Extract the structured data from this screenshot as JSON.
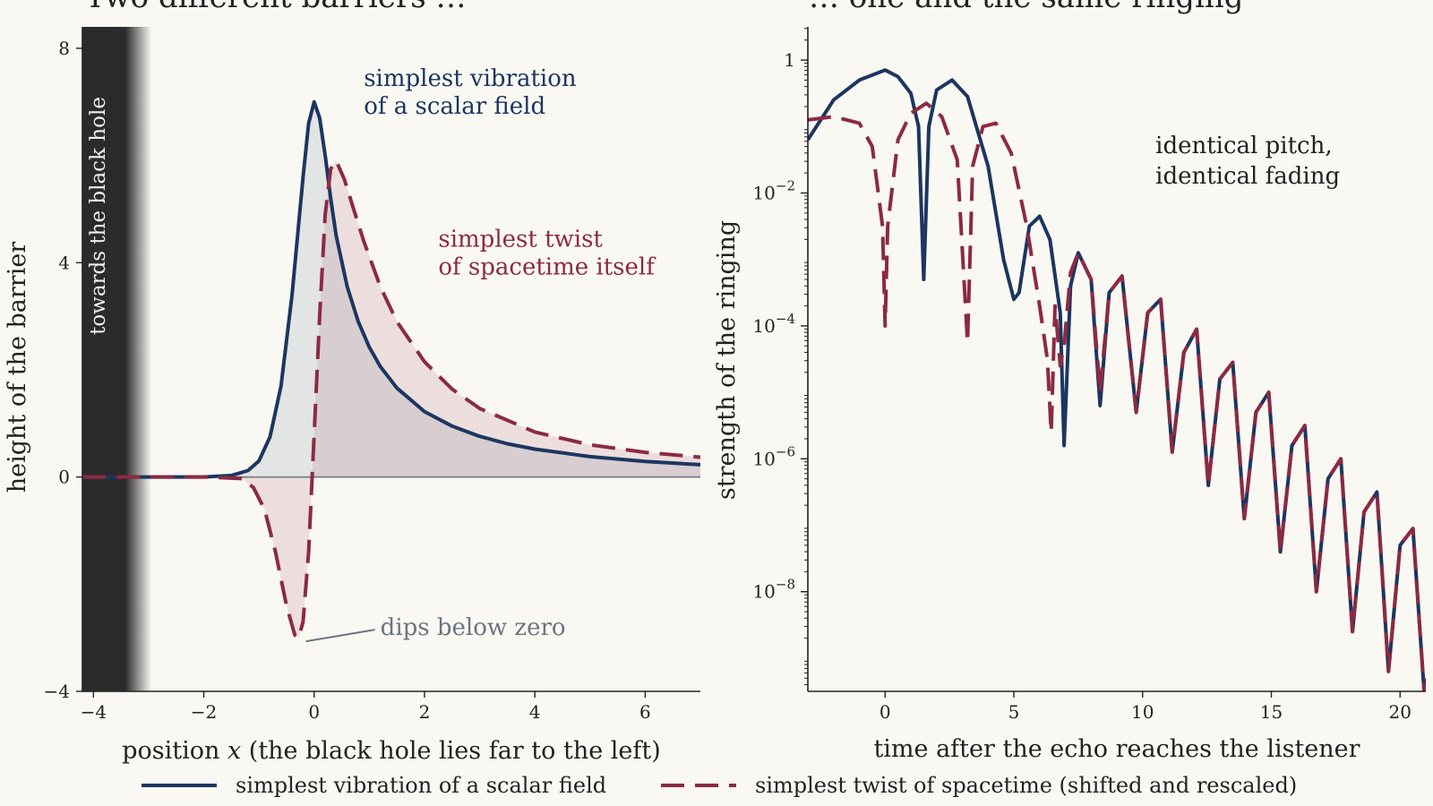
{
  "colors": {
    "background": "#faf8f3",
    "navy": "#1c3660",
    "crimson": "#8c2a43",
    "wall": "#2b2b2b",
    "grey": "#6b7480"
  },
  "chart_data": [
    {
      "type": "line",
      "title": "Two different barriers …",
      "xlabel": "position x (the black hole lies far to the left)",
      "ylabel": "height of the barrier",
      "xlim": [
        -4.2,
        7
      ],
      "ylim": [
        -4,
        8.4
      ],
      "xticks": [
        "−4",
        "−2",
        "0",
        "2",
        "4",
        "6"
      ],
      "xtick_values": [
        -4,
        -2,
        0,
        2,
        4,
        6
      ],
      "yticks": [
        "−4",
        "0",
        "4",
        "8"
      ],
      "ytick_values": [
        -4,
        0,
        4,
        8
      ],
      "wall_label": "towards the black hole",
      "wall_range": [
        -4.2,
        -2.95
      ],
      "series": [
        {
          "name": "simplest vibration of a scalar field",
          "style": "solid",
          "x": [
            -4.2,
            -2,
            -1.5,
            -1.2,
            -1.0,
            -0.8,
            -0.6,
            -0.4,
            -0.2,
            -0.1,
            0,
            0.1,
            0.2,
            0.3,
            0.4,
            0.6,
            0.8,
            1.0,
            1.2,
            1.5,
            2.0,
            2.5,
            3.0,
            3.5,
            4.0,
            5.0,
            6.0,
            7.0
          ],
          "values": [
            0,
            0,
            0.03,
            0.12,
            0.3,
            0.75,
            1.7,
            3.4,
            5.6,
            6.6,
            7.0,
            6.7,
            6.0,
            5.2,
            4.5,
            3.55,
            2.9,
            2.42,
            2.06,
            1.66,
            1.22,
            0.95,
            0.76,
            0.62,
            0.52,
            0.38,
            0.29,
            0.23
          ]
        },
        {
          "name": "simplest twist of spacetime (shifted and rescaled)",
          "style": "dashed",
          "x": [
            -4.2,
            -2,
            -1.3,
            -1.1,
            -0.9,
            -0.7,
            -0.5,
            -0.35,
            -0.28,
            -0.2,
            -0.1,
            0,
            0.1,
            0.2,
            0.3,
            0.4,
            0.55,
            0.7,
            0.9,
            1.2,
            1.5,
            2.0,
            2.5,
            3.0,
            4.0,
            5.0,
            6.0,
            7.0
          ],
          "values": [
            0,
            0,
            -0.03,
            -0.2,
            -0.6,
            -1.4,
            -2.4,
            -2.95,
            -3.0,
            -2.7,
            -1.4,
            0.8,
            3.0,
            4.9,
            5.75,
            5.9,
            5.55,
            5.05,
            4.4,
            3.55,
            2.9,
            2.15,
            1.64,
            1.28,
            0.84,
            0.6,
            0.46,
            0.37
          ]
        }
      ],
      "annotations": [
        {
          "text": [
            "simplest vibration",
            "of a scalar field"
          ],
          "x": 0.9,
          "y": 7.3,
          "color": "navy"
        },
        {
          "text": [
            "simplest twist",
            "of spacetime itself"
          ],
          "x": 2.25,
          "y": 4.3,
          "color": "crimson"
        },
        {
          "text": [
            "dips below zero"
          ],
          "x": 1.2,
          "y": -2.95,
          "color": "grey",
          "arrow_to": [
            -0.28,
            -3.0
          ]
        }
      ]
    },
    {
      "type": "line",
      "title": "… one and the same ringing",
      "xlabel": "time after the echo reaches the listener",
      "ylabel": "strength of the ringing",
      "yscale": "log",
      "xlim": [
        -3,
        21
      ],
      "ylim_log10": [
        -9.5,
        0.5
      ],
      "xticks": [
        "0",
        "5",
        "10",
        "15",
        "20"
      ],
      "xtick_values": [
        0,
        5,
        10,
        15,
        20
      ],
      "yticks_exponent": [
        "0",
        "−2",
        "−4",
        "−6",
        "−8"
      ],
      "ytick_log10": [
        0,
        -2,
        -4,
        -6,
        -8
      ],
      "annotations": [
        {
          "text": [
            "identical pitch,",
            "identical fading"
          ],
          "x": 10.5,
          "y_log10": -1.4,
          "color": "dark"
        }
      ],
      "series": [
        {
          "name": "simplest vibration of a scalar field",
          "style": "solid",
          "x": [
            -3,
            -2,
            -1,
            0,
            0.5,
            1,
            1.3,
            1.5,
            1.7,
            2,
            2.6,
            3.2,
            4,
            4.6,
            5,
            5.2,
            5.6,
            6,
            6.4,
            6.8,
            6.95,
            7.2,
            7.5,
            8,
            8.35,
            8.7,
            9.2,
            9.75,
            10.2,
            10.7,
            11.15,
            11.6,
            12.1,
            12.55,
            13,
            13.5,
            13.95,
            14.4,
            14.9,
            15.35,
            15.8,
            16.3,
            16.75,
            17.2,
            17.7,
            18.15,
            18.6,
            19.1,
            19.55,
            20,
            20.5,
            20.95,
            21
          ],
          "values": [
            -1.2,
            -0.6,
            -0.3,
            -0.15,
            -0.25,
            -0.5,
            -1.0,
            -3.3,
            -1.0,
            -0.45,
            -0.3,
            -0.55,
            -1.6,
            -3.0,
            -3.6,
            -3.5,
            -2.5,
            -2.35,
            -2.7,
            -3.8,
            -5.8,
            -3.4,
            -2.9,
            -3.3,
            -5.2,
            -3.5,
            -3.25,
            -5.3,
            -3.8,
            -3.6,
            -5.9,
            -4.4,
            -4.05,
            -6.4,
            -4.8,
            -4.55,
            -6.9,
            -5.3,
            -5.0,
            -7.4,
            -5.8,
            -5.5,
            -8.0,
            -6.3,
            -6.0,
            -8.6,
            -6.8,
            -6.5,
            -9.2,
            -7.3,
            -7.05,
            -9.6,
            -9.3
          ]
        },
        {
          "name": "simplest twist of spacetime (shifted and rescaled)",
          "style": "dashed",
          "x": [
            -3,
            -2,
            -1,
            -0.5,
            -0.1,
            0,
            0.1,
            0.5,
            1,
            1.6,
            2.2,
            2.8,
            3.2,
            3.4,
            3.8,
            4.3,
            4.9,
            5.5,
            6,
            6.3,
            6.45,
            6.6,
            6.8,
            6.95,
            7.2,
            7.5,
            8,
            8.35,
            8.7,
            9.2,
            9.75,
            10.2,
            10.7,
            11.15,
            11.6,
            12.1,
            12.55,
            13,
            13.5,
            13.95,
            14.4,
            14.9,
            15.35,
            15.8,
            16.3,
            16.75,
            17.2,
            17.7,
            18.15,
            18.6,
            19.1,
            19.55,
            20,
            20.5,
            20.95,
            21
          ],
          "values": [
            -0.9,
            -0.85,
            -0.95,
            -1.3,
            -2.5,
            -4.0,
            -2.5,
            -1.2,
            -0.8,
            -0.65,
            -0.85,
            -1.5,
            -4.25,
            -1.6,
            -1.0,
            -0.95,
            -1.4,
            -2.5,
            -3.7,
            -4.5,
            -5.6,
            -3.7,
            -4.6,
            -4.3,
            -3.2,
            -2.9,
            -3.3,
            -5.0,
            -3.5,
            -3.25,
            -5.3,
            -3.8,
            -3.6,
            -5.9,
            -4.4,
            -4.05,
            -6.4,
            -4.8,
            -4.55,
            -6.9,
            -5.3,
            -5.0,
            -7.4,
            -5.8,
            -5.5,
            -8.0,
            -6.3,
            -6.0,
            -8.6,
            -6.8,
            -6.5,
            -9.2,
            -7.3,
            -7.05,
            -9.6,
            -9.3
          ]
        }
      ]
    }
  ],
  "legend": {
    "placement": "bottom-center",
    "items": [
      {
        "label": "simplest vibration of a scalar field",
        "style": "solid"
      },
      {
        "label": "simplest twist of spacetime (shifted and rescaled)",
        "style": "dashed"
      }
    ]
  }
}
